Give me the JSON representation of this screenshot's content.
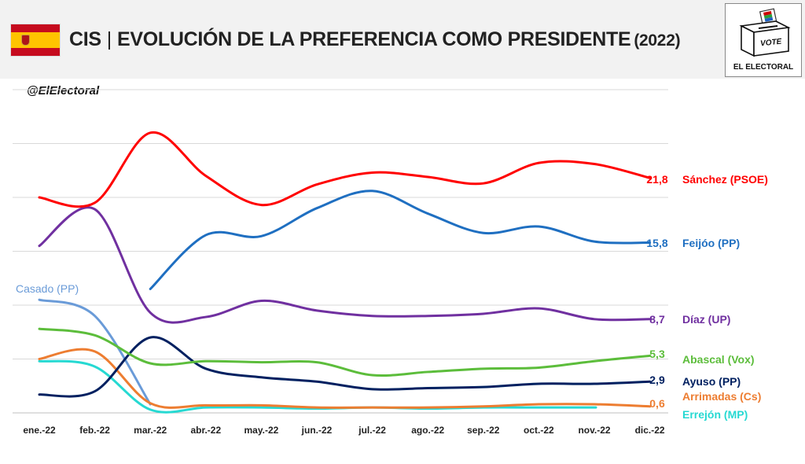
{
  "header": {
    "title_main": "CIS",
    "title_sep": "|",
    "title_rest": "EVOLUCIÓN DE LA PREFERENCIA COMO PRESIDENTE",
    "title_year": "(2022)",
    "flag": "spain-flag-icon",
    "logo": {
      "icon": "ballot-box-icon",
      "stamp": "VOTE",
      "caption": "EL ELECTORAL"
    }
  },
  "watermark": "@ElElectoral",
  "chart_data": {
    "type": "line",
    "categories": [
      "ene.-22",
      "feb.-22",
      "mar.-22",
      "abr.-22",
      "may.-22",
      "jun.-22",
      "jul.-22",
      "ago.-22",
      "sep.-22",
      "oct.-22",
      "nov.-22",
      "dic.-22"
    ],
    "ylim": [
      0,
      30
    ],
    "grid": true,
    "legend": "right",
    "series": [
      {
        "name": "Sánchez (PSOE)",
        "color": "#ff0000",
        "end_label": "21,8",
        "values": [
          20.0,
          19.5,
          26.0,
          22.0,
          19.3,
          21.2,
          22.3,
          21.9,
          21.3,
          23.2,
          23.1,
          21.8
        ]
      },
      {
        "name": "Feijóo (PP)",
        "color": "#1f6fc1",
        "end_label": "15,8",
        "values": [
          null,
          null,
          11.5,
          16.5,
          16.4,
          19.0,
          20.6,
          18.5,
          16.7,
          17.3,
          15.9,
          15.8
        ]
      },
      {
        "name": "Casado (PP)",
        "color": "#6a9bd8",
        "end_label": "",
        "values": [
          10.5,
          9.0,
          0.8,
          null,
          null,
          null,
          null,
          null,
          null,
          null,
          null,
          null
        ]
      },
      {
        "name": "Díaz (UP)",
        "color": "#7030a0",
        "end_label": "8,7",
        "values": [
          15.5,
          18.9,
          9.3,
          8.9,
          10.4,
          9.5,
          9.0,
          9.0,
          9.2,
          9.7,
          8.7,
          8.7
        ]
      },
      {
        "name": "Abascal (Vox)",
        "color": "#5cbd3b",
        "end_label": "5,3",
        "values": [
          7.8,
          7.2,
          4.6,
          4.8,
          4.7,
          4.7,
          3.5,
          3.8,
          4.1,
          4.2,
          4.8,
          5.3
        ]
      },
      {
        "name": "Ayuso (PP)",
        "color": "#002060",
        "end_label": "2,9",
        "values": [
          1.7,
          2.0,
          7.0,
          4.1,
          3.3,
          2.9,
          2.2,
          2.3,
          2.4,
          2.7,
          2.7,
          2.9
        ]
      },
      {
        "name": "Arrimadas (Cs)",
        "color": "#ed7d31",
        "end_label": "0,6",
        "values": [
          5.0,
          5.7,
          0.9,
          0.7,
          0.7,
          0.5,
          0.5,
          0.5,
          0.6,
          0.8,
          0.8,
          0.6
        ]
      },
      {
        "name": "Errejón (MP)",
        "color": "#26d9d2",
        "end_label": "",
        "values": [
          4.8,
          4.3,
          0.3,
          0.5,
          0.5,
          0.4,
          0.5,
          0.4,
          0.5,
          0.5,
          0.5,
          null
        ]
      }
    ]
  }
}
